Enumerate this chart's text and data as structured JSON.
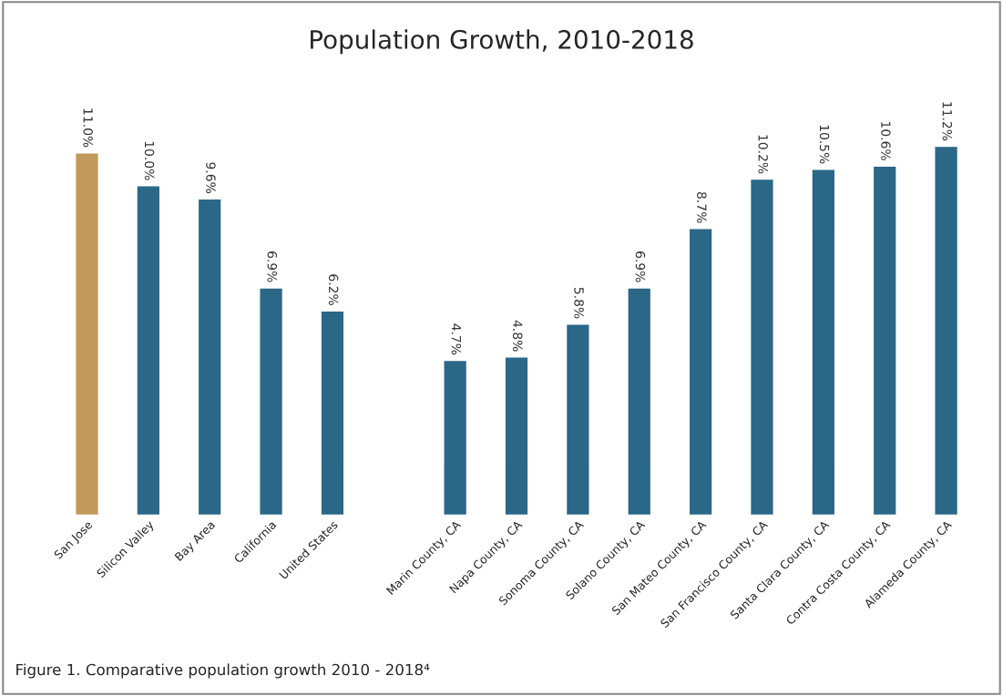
{
  "chart_data": {
    "type": "bar",
    "title": "Population Growth, 2010-2018",
    "categories": [
      "San Jose",
      "Silicon Valley",
      "Bay Area",
      "California",
      "United States",
      null,
      "Marin County, CA",
      "Napa County, CA",
      "Sonoma County, CA",
      "Solano County, CA",
      "San Mateo County, CA",
      "San Francisco County, CA",
      "Santa Clara County, CA",
      "Contra Costa County, CA",
      "Alameda County, CA"
    ],
    "values": [
      11.0,
      10.0,
      9.6,
      6.9,
      6.2,
      null,
      4.7,
      4.8,
      5.8,
      6.9,
      8.7,
      10.2,
      10.5,
      10.6,
      11.2
    ],
    "value_labels": [
      "11.0%",
      "10.0%",
      "9.6%",
      "6.9%",
      "6.2%",
      null,
      "4.7%",
      "4.8%",
      "5.8%",
      "6.9%",
      "8.7%",
      "10.2%",
      "10.5%",
      "10.6%",
      "11.2%"
    ],
    "colors": [
      "#c19a5b",
      "#2b6787",
      "#2b6787",
      "#2b6787",
      "#2b6787",
      "#2b6787",
      "#2b6787",
      "#2b6787",
      "#2b6787",
      "#2b6787",
      "#2b6787",
      "#2b6787",
      "#2b6787",
      "#2b6787",
      "#2b6787"
    ],
    "annotations": [
      "Figure 1. Comparative population growth 2010 - 2018⁴"
    ],
    "grid": false,
    "legend": false
  }
}
